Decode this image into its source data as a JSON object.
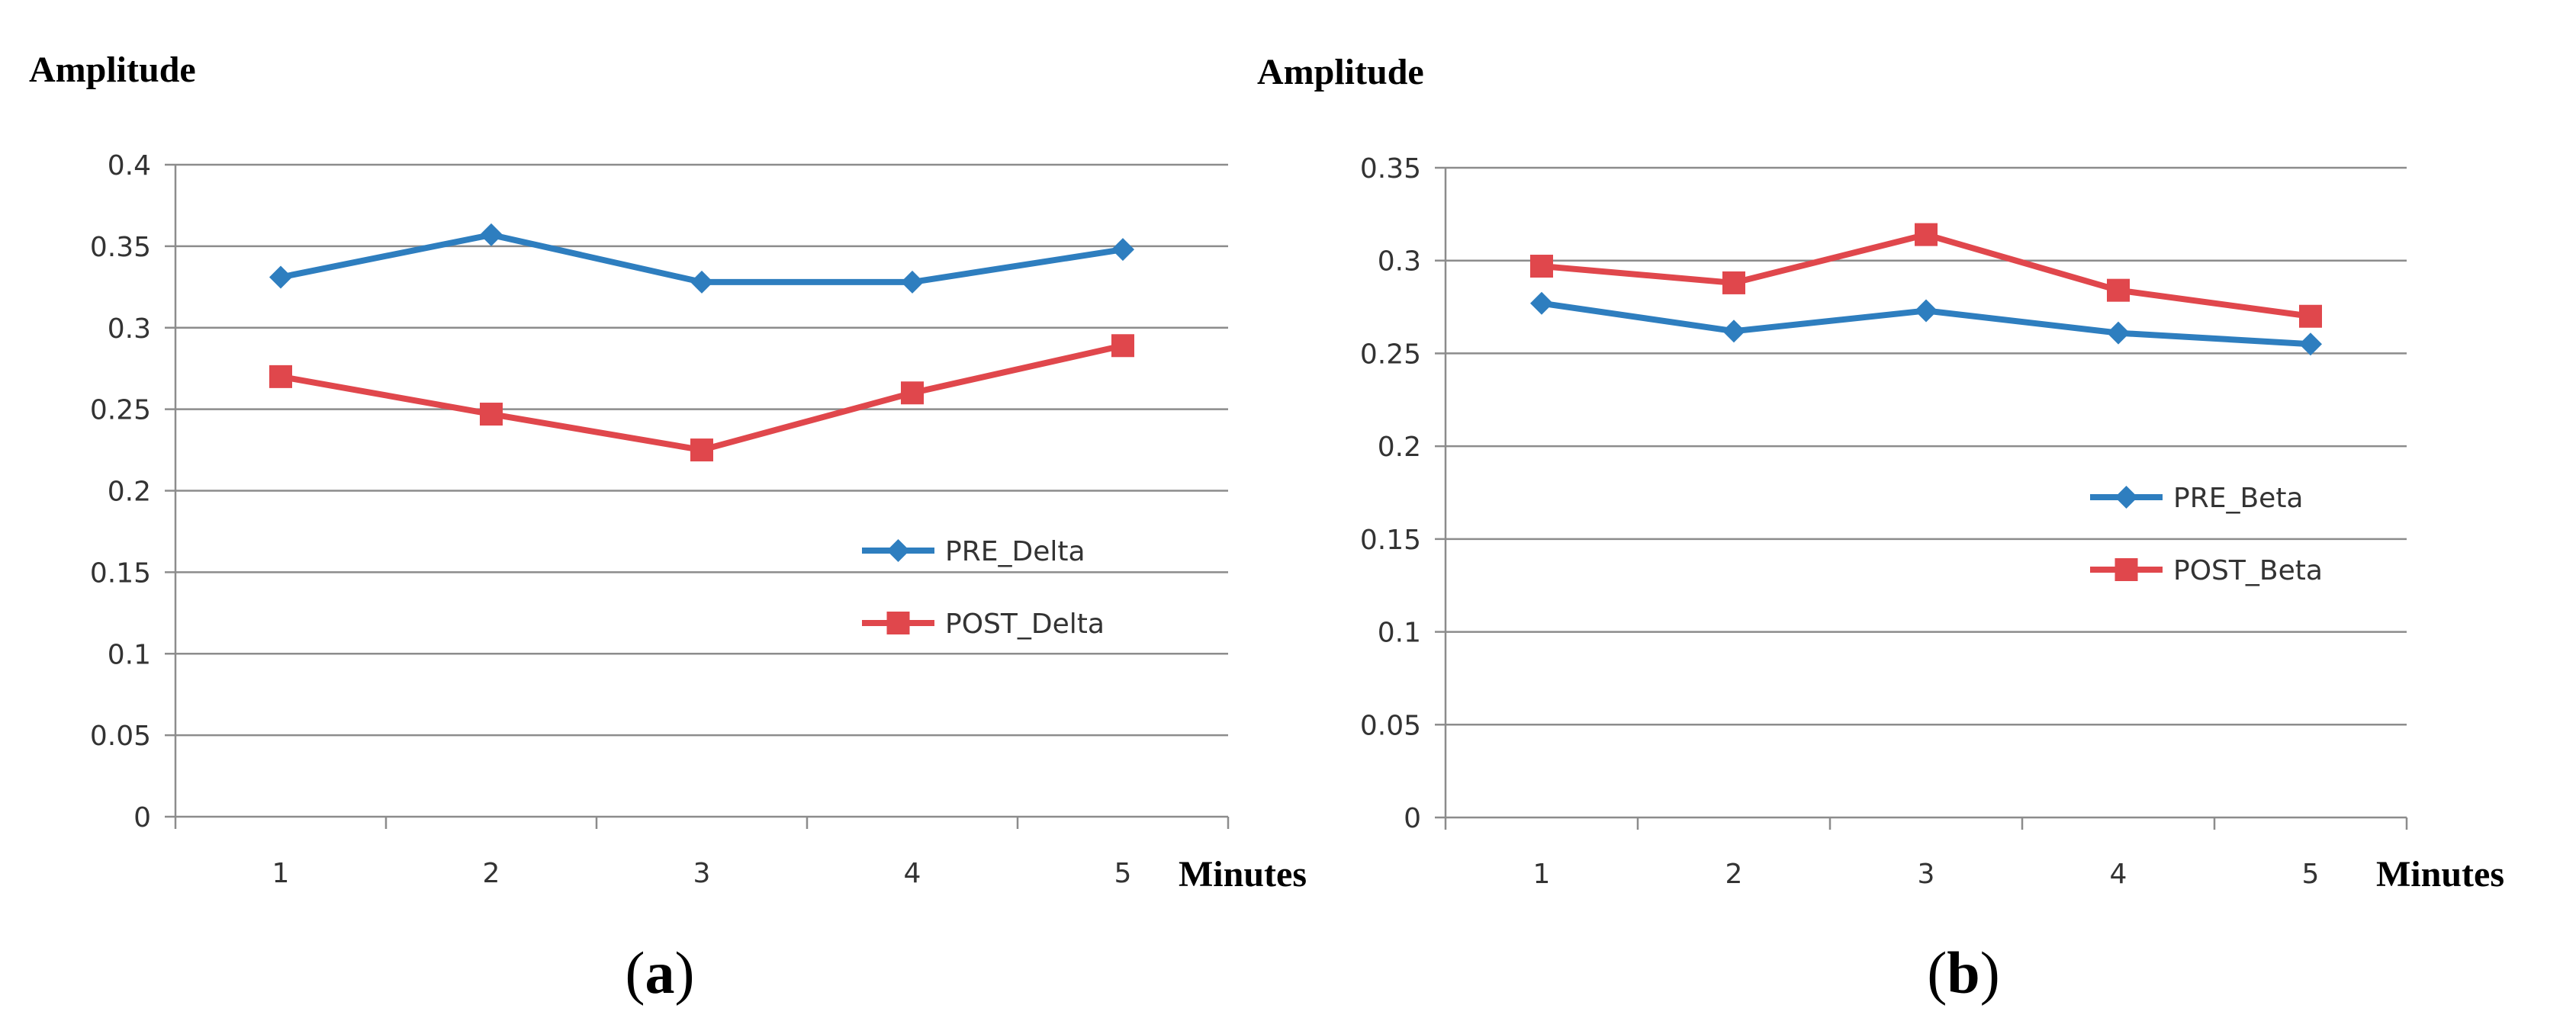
{
  "chart_data": [
    {
      "type": "line",
      "panel_label": "a",
      "ylabel": "Amplitude",
      "xlabel": "Minutes",
      "categories": [
        "1",
        "2",
        "3",
        "4",
        "5"
      ],
      "ylim": [
        0,
        0.4
      ],
      "yticks": [
        "0",
        "0.05",
        "0.1",
        "0.15",
        "0.2",
        "0.25",
        "0.3",
        "0.35",
        "0.4"
      ],
      "grid": true,
      "legend_position": "right, inside plot, middle",
      "series": [
        {
          "name": "PRE_Delta",
          "color": "#2e7ebf",
          "marker": "diamond",
          "values": [
            0.331,
            0.357,
            0.328,
            0.328,
            0.348
          ]
        },
        {
          "name": "POST_Delta",
          "color": "#e0474c",
          "marker": "square",
          "values": [
            0.27,
            0.247,
            0.225,
            0.26,
            0.289
          ]
        }
      ]
    },
    {
      "type": "line",
      "panel_label": "b",
      "ylabel": "Amplitude",
      "xlabel": "Minutes",
      "categories": [
        "1",
        "2",
        "3",
        "4",
        "5"
      ],
      "ylim": [
        0,
        0.35
      ],
      "yticks": [
        "0",
        "0.05",
        "0.1",
        "0.15",
        "0.2",
        "0.25",
        "0.3",
        "0.35"
      ],
      "grid": true,
      "legend_position": "right, inside plot, middle",
      "series": [
        {
          "name": "PRE_Beta",
          "color": "#2e7ebf",
          "marker": "diamond",
          "values": [
            0.277,
            0.262,
            0.273,
            0.261,
            0.255
          ]
        },
        {
          "name": "POST_Beta",
          "color": "#e0474c",
          "marker": "square",
          "values": [
            0.297,
            0.288,
            0.314,
            0.284,
            0.27
          ]
        }
      ]
    }
  ]
}
